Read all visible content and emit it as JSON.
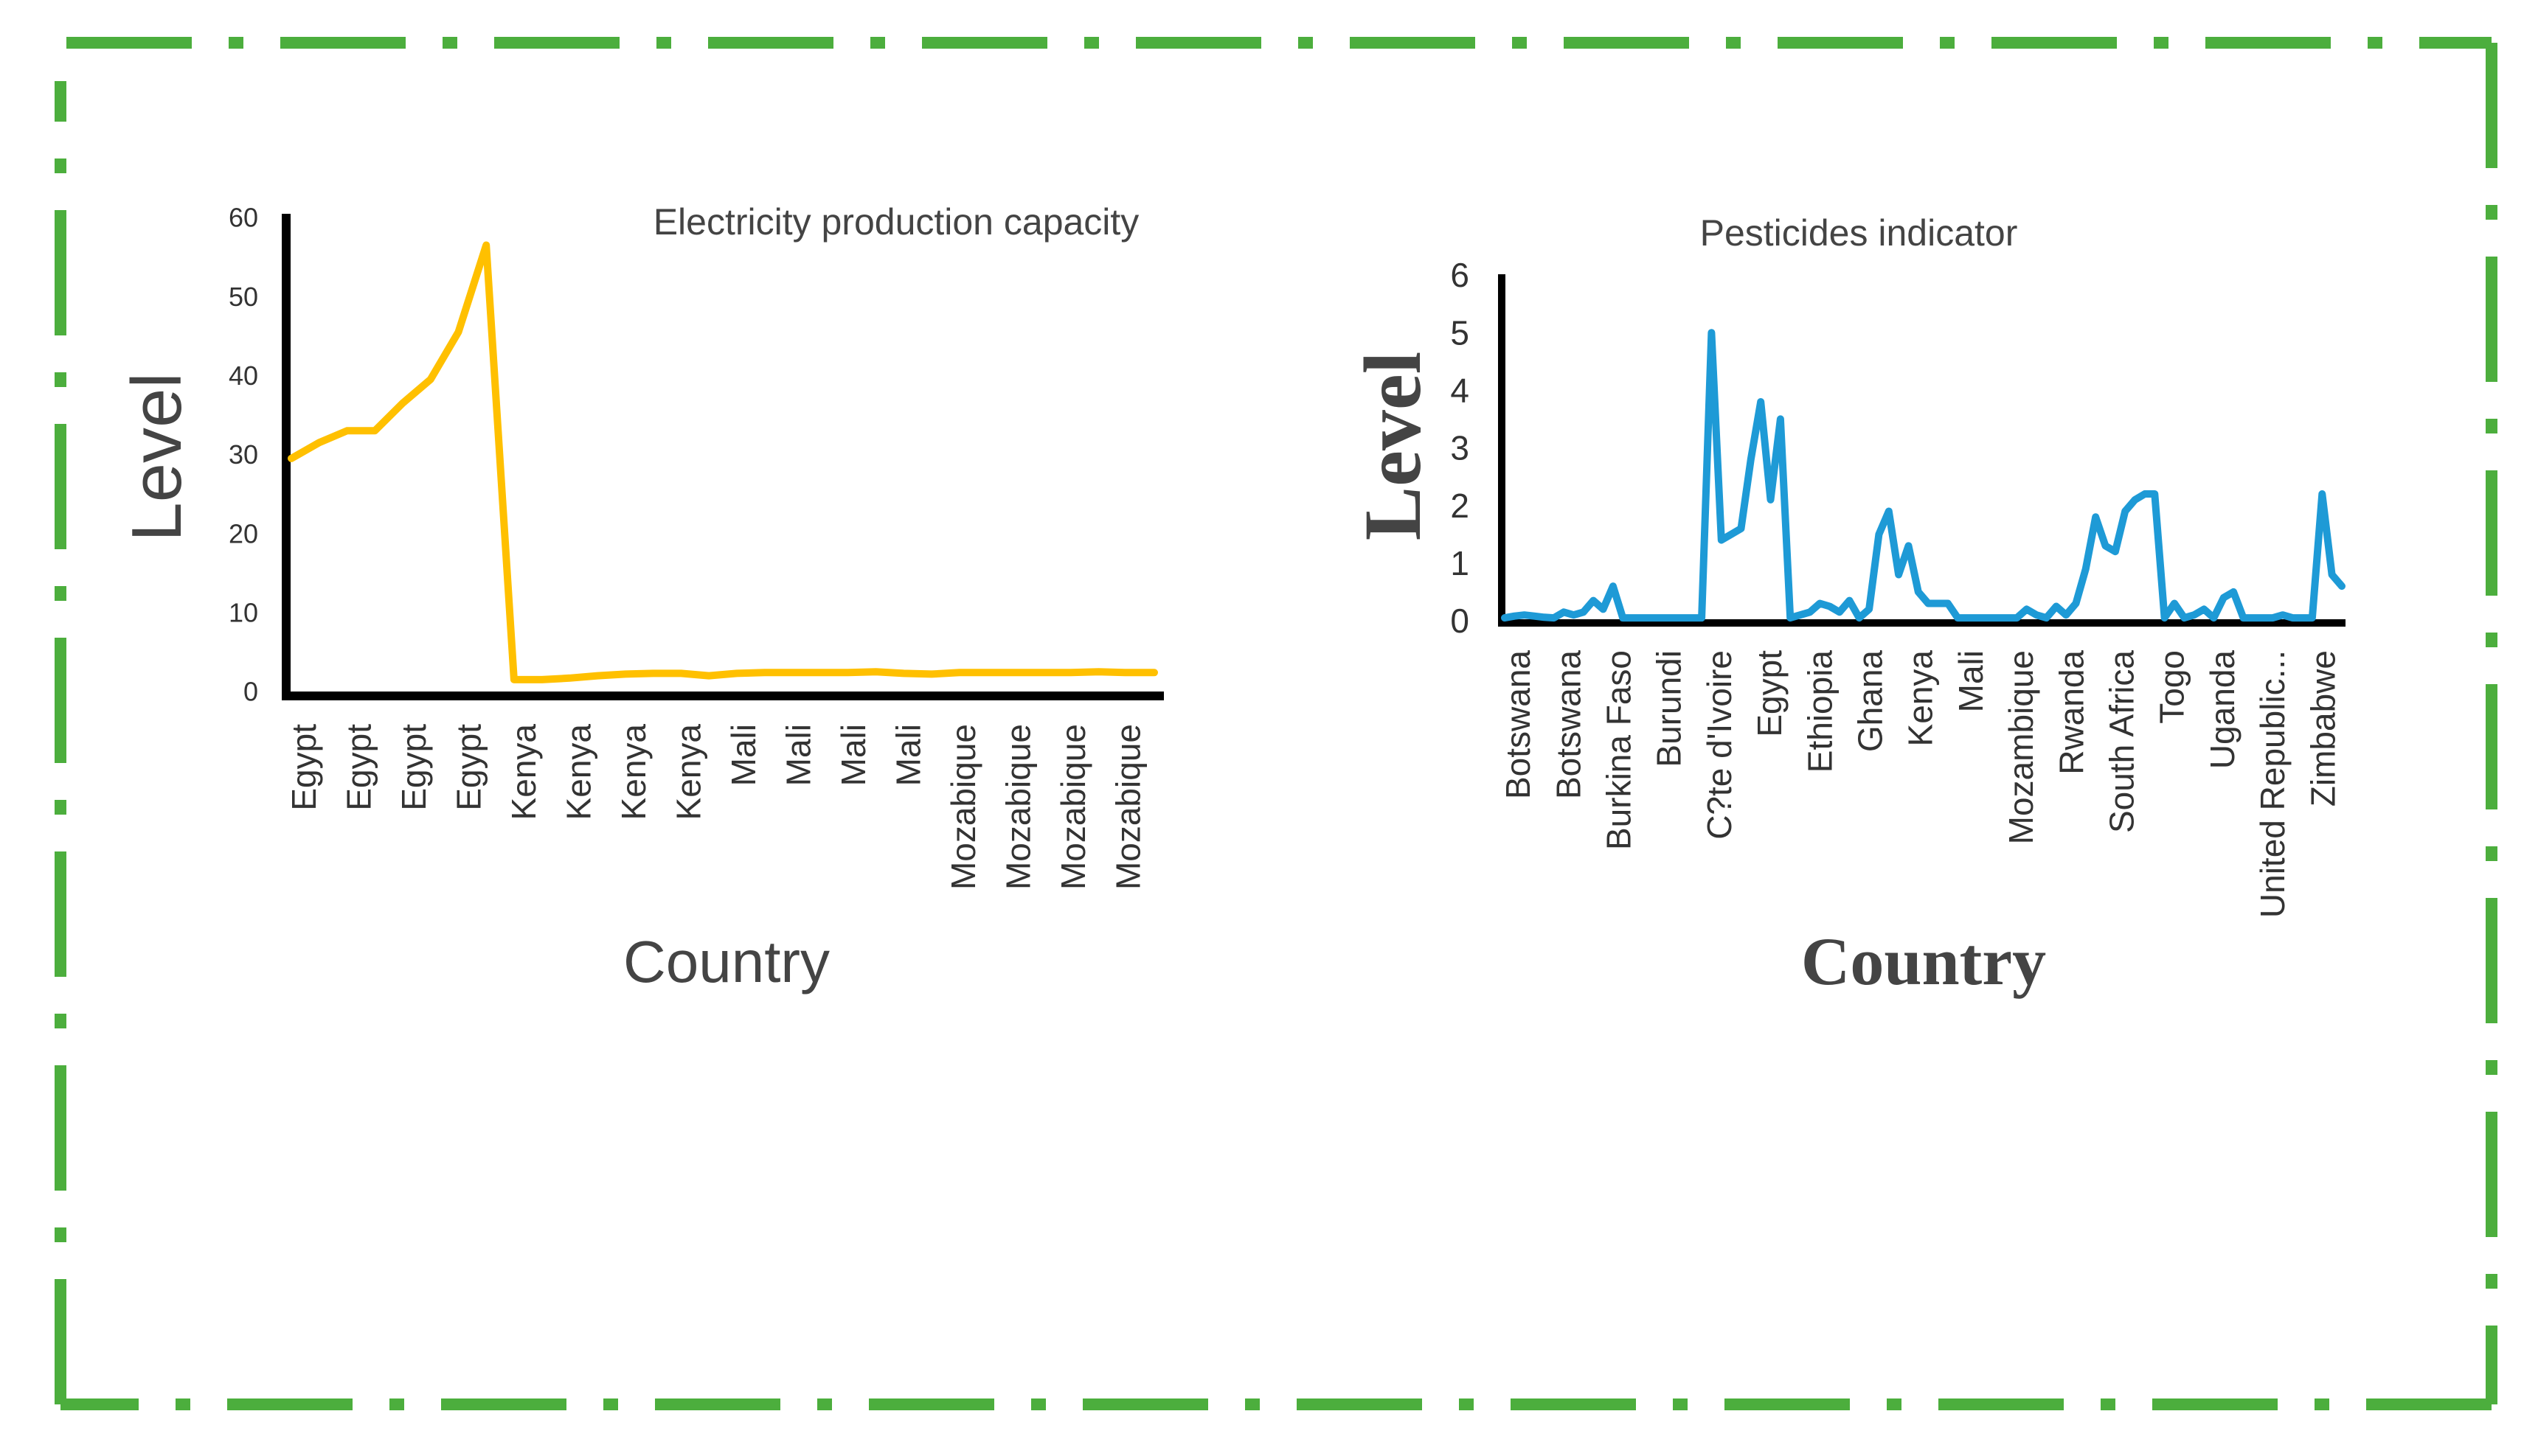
{
  "colors": {
    "frame": "#4cae3d",
    "series1": "#ffc000",
    "series2": "#1e9ad6",
    "axis": "#000000",
    "text": "#444444"
  },
  "chart_data": [
    {
      "type": "line",
      "title": "Electricity production capacity",
      "xlabel": "Country",
      "ylabel": "Level",
      "ylim": [
        0,
        60
      ],
      "yticks": [
        0,
        10,
        20,
        30,
        40,
        50,
        60
      ],
      "tick_labels": [
        "Egypt",
        "Egypt",
        "Egypt",
        "Egypt",
        "Kenya",
        "Kenya",
        "Kenya",
        "Kenya",
        "Mali",
        "Mali",
        "Mali",
        "Mali",
        "Mozabique",
        "Mozabique",
        "Mozabique",
        "Mozabique"
      ],
      "grid": false,
      "series": [
        {
          "name": "Electricity production capacity",
          "color": "#ffc000",
          "x": [
            0,
            1,
            2,
            3,
            4,
            5,
            6,
            7,
            8,
            9,
            10,
            11,
            12,
            13,
            14,
            15,
            16,
            17,
            18,
            19,
            20,
            21,
            22,
            23,
            24,
            25,
            26,
            27,
            28,
            29,
            30,
            31
          ],
          "values": [
            29.5,
            31.5,
            33,
            33,
            36.5,
            39.5,
            45.5,
            56.5,
            1.5,
            1.5,
            1.7,
            2,
            2.2,
            2.3,
            2.3,
            2,
            2.3,
            2.4,
            2.4,
            2.4,
            2.4,
            2.5,
            2.3,
            2.2,
            2.4,
            2.4,
            2.4,
            2.4,
            2.4,
            2.5,
            2.4,
            2.4
          ]
        }
      ]
    },
    {
      "type": "line",
      "title": "Pesticides indicator",
      "xlabel": "Country",
      "ylabel": "Level",
      "ylim": [
        0,
        6
      ],
      "yticks": [
        0,
        1,
        2,
        3,
        4,
        5,
        6
      ],
      "tick_labels": [
        "Botswana",
        "Botswana",
        "Burkina Faso",
        "Burundi",
        "C?te d'Ivoire",
        "Egypt",
        "Ethiopia",
        "Ghana",
        "Kenya",
        "Mali",
        "Mozambique",
        "Rwanda",
        "South Africa",
        "Togo",
        "Uganda",
        "United Republic...",
        "Zimbabwe"
      ],
      "grid": false,
      "series": [
        {
          "name": "Pesticides indicator",
          "color": "#1e9ad6",
          "x": [
            0,
            2,
            4,
            6,
            8,
            10,
            12,
            14,
            16,
            18,
            20,
            22,
            24,
            26,
            28,
            30,
            32,
            34,
            36,
            38,
            40,
            42,
            44,
            46,
            48,
            50,
            52,
            54,
            56,
            58,
            60,
            62,
            64,
            66,
            68,
            70,
            72,
            74,
            76,
            78,
            80,
            82,
            84,
            86,
            88,
            90,
            92,
            94,
            96,
            98,
            100,
            102,
            104,
            106,
            108,
            110,
            112,
            114,
            116,
            118,
            120,
            122,
            124,
            126,
            128,
            130,
            132,
            134,
            136,
            138,
            140,
            142,
            144,
            146,
            148,
            150,
            152,
            154,
            156,
            158,
            160,
            162,
            164,
            166,
            168,
            170
          ],
          "values": [
            0.05,
            0.08,
            0.1,
            0.08,
            0.06,
            0.05,
            0.15,
            0.1,
            0.15,
            0.35,
            0.2,
            0.6,
            0.05,
            0.05,
            0.05,
            0.05,
            0.05,
            0.05,
            0.05,
            0.05,
            0.05,
            5.0,
            1.4,
            1.5,
            1.6,
            2.8,
            3.8,
            2.1,
            3.5,
            0.05,
            0.1,
            0.15,
            0.3,
            0.25,
            0.15,
            0.35,
            0.05,
            0.2,
            1.5,
            1.9,
            0.8,
            1.3,
            0.5,
            0.3,
            0.3,
            0.3,
            0.05,
            0.05,
            0.05,
            0.05,
            0.05,
            0.05,
            0.05,
            0.2,
            0.1,
            0.05,
            0.25,
            0.1,
            0.3,
            0.9,
            1.8,
            1.3,
            1.2,
            1.9,
            2.1,
            2.2,
            2.2,
            0.05,
            0.3,
            0.05,
            0.1,
            0.2,
            0.05,
            0.4,
            0.5,
            0.05,
            0.05,
            0.05,
            0.05,
            0.1,
            0.05,
            0.05,
            0.05,
            2.2,
            0.8,
            0.6
          ]
        }
      ]
    }
  ]
}
